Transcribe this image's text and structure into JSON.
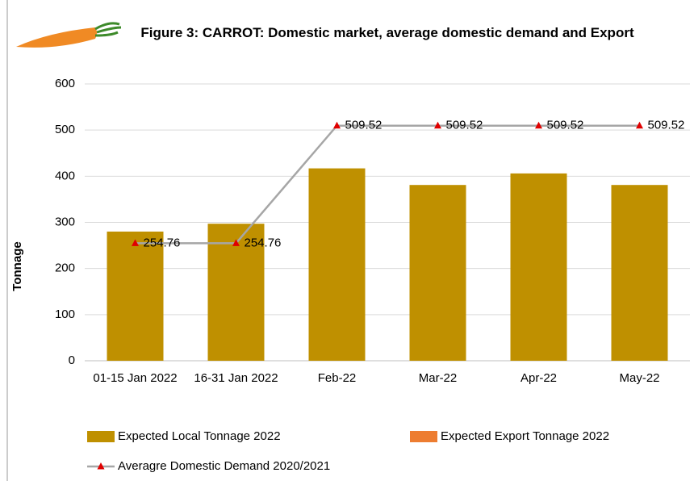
{
  "chart_data": {
    "type": "bar",
    "title": "Figure 3: CARROT: Domestic market, average domestic demand and Export",
    "y_label": "Tonnage",
    "categories": [
      "01-15 Jan 2022",
      "16-31 Jan 2022",
      "Feb-22",
      "Mar-22",
      "Apr-22",
      "May-22"
    ],
    "series": [
      {
        "name": "Expected Local Tonnage 2022",
        "type": "bar",
        "color": "#bf9000",
        "values": [
          280,
          297,
          417,
          381,
          406,
          381
        ]
      },
      {
        "name": "Expected  Export Tonnage 2022",
        "type": "bar",
        "color": "#ed7d31",
        "values": [
          0,
          0,
          0,
          0,
          0,
          0
        ]
      },
      {
        "name": "Averagre Domestic Demand 2020/2021",
        "type": "line",
        "color": "#a6a6a6",
        "marker_color": "#e00000",
        "values": [
          254.76,
          254.76,
          509.52,
          509.52,
          509.52,
          509.52
        ]
      }
    ],
    "ylim": [
      0,
      600
    ],
    "yticks": [
      0,
      100,
      200,
      300,
      400,
      500,
      600
    ],
    "grid": true
  }
}
